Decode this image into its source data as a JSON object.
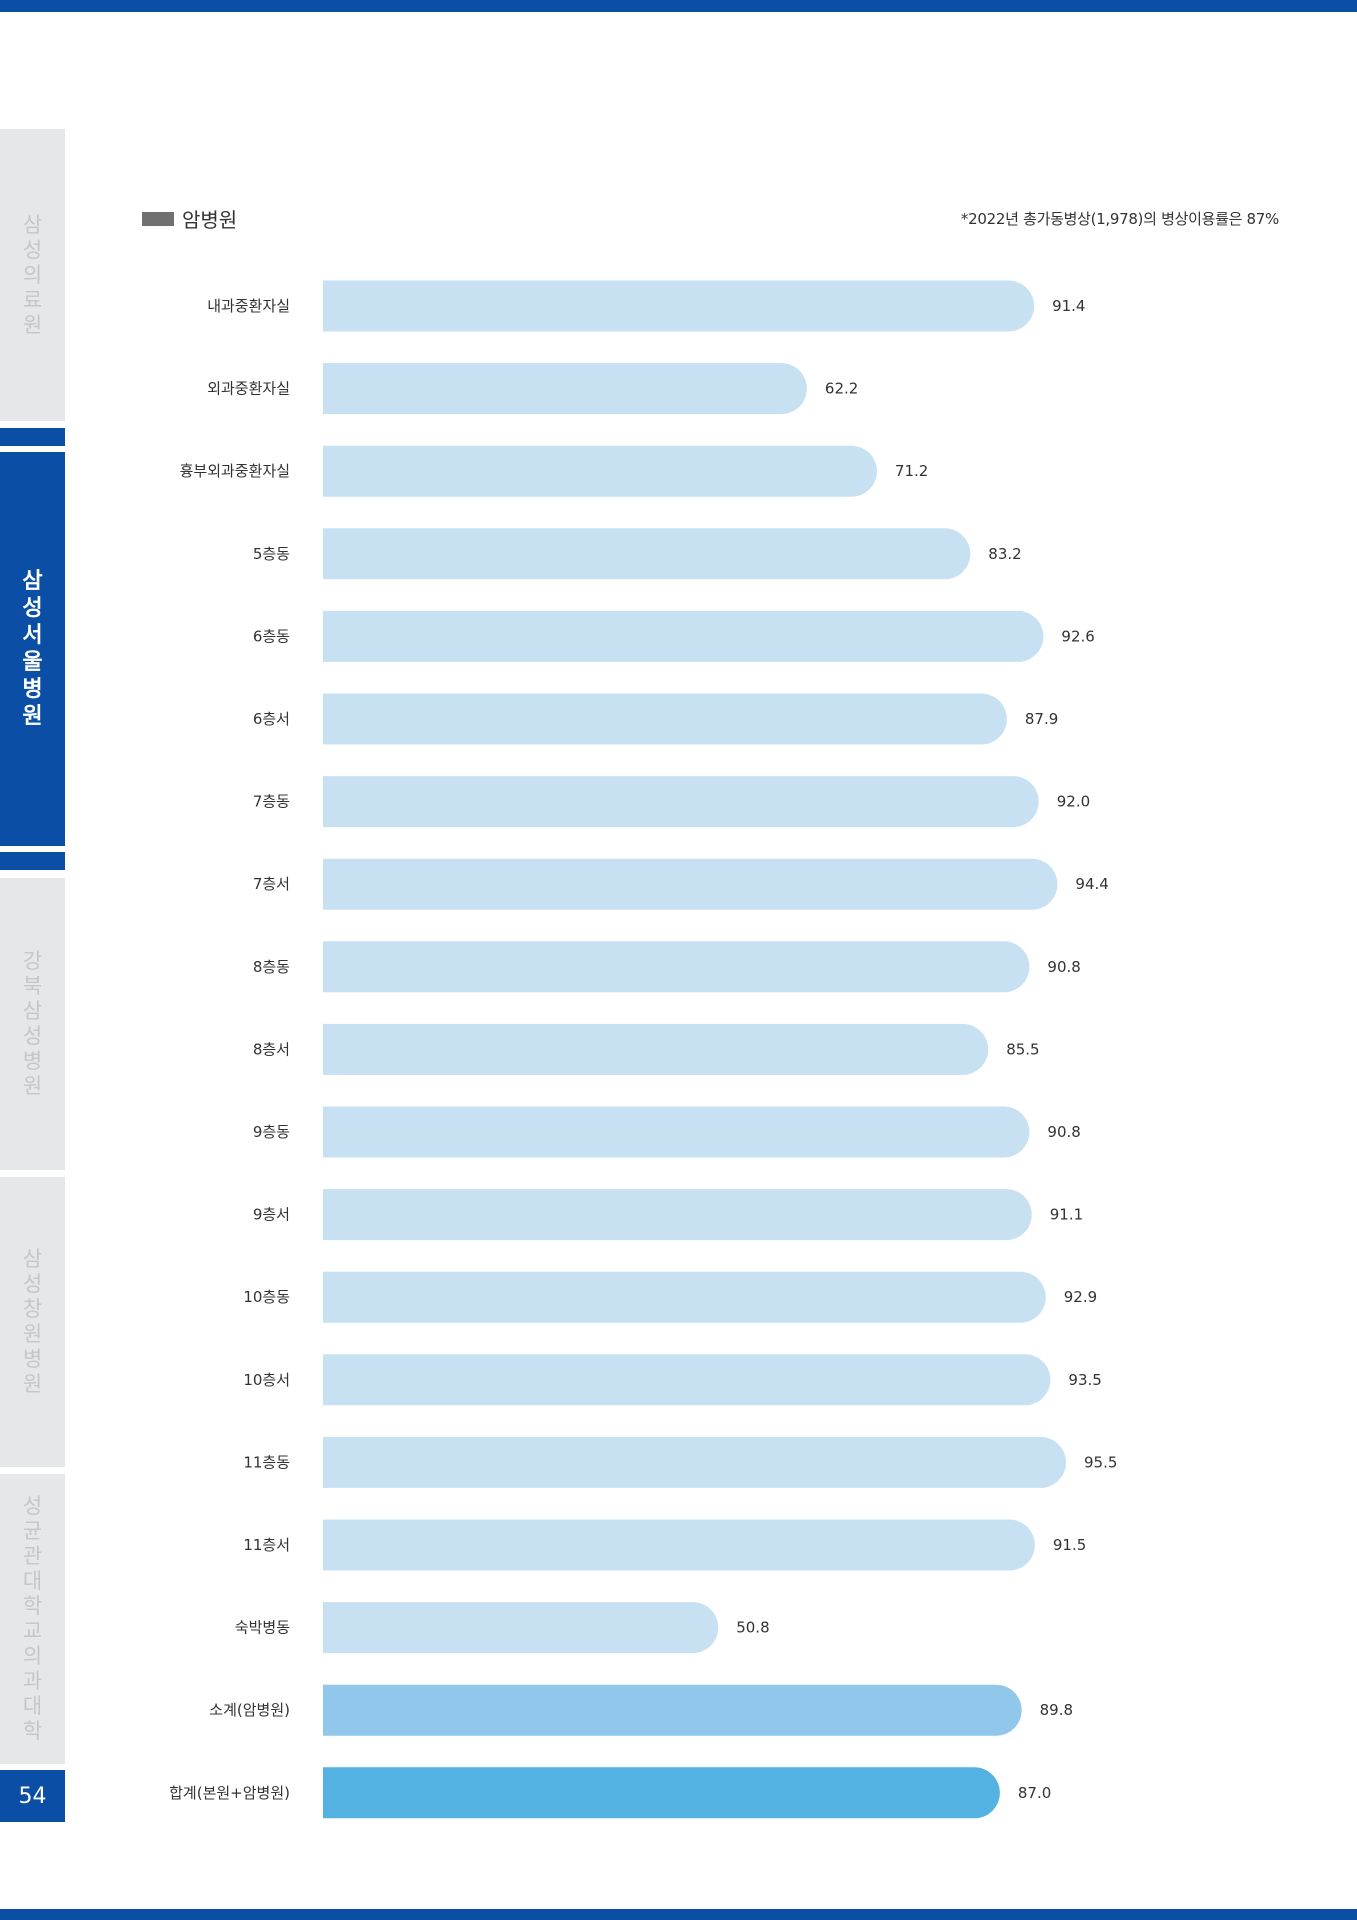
{
  "side_tabs": [
    {
      "chars": [
        "삼",
        "성",
        "의",
        "료",
        "원"
      ]
    },
    {
      "chars": [
        "삼",
        "성",
        "서",
        "울",
        "병",
        "원"
      ]
    },
    {
      "chars": [
        "강",
        "북",
        "삼",
        "성",
        "병",
        "원"
      ]
    },
    {
      "chars": [
        "삼",
        "성",
        "창",
        "원",
        "병",
        "원"
      ]
    },
    {
      "chars": [
        "성",
        "균",
        "관",
        "대",
        "학",
        "교",
        "의",
        "과",
        "대",
        "학"
      ]
    }
  ],
  "page_number": "54",
  "legend_label": "암병원",
  "footnote": "*2022년 총가동병상(1,978)의 병상이용률은 87%",
  "colors": {
    "brand": "#0a4ea6",
    "bar": "#c7e1f3",
    "bar_subtotal": "#91c7ea",
    "bar_total": "#54b2e3",
    "legend": "#707070"
  },
  "chart_data": {
    "type": "bar",
    "orientation": "horizontal",
    "categories": [
      "내과중환자실",
      "외과중환자실",
      "흉부외과중환자실",
      "5층동",
      "6층동",
      "6층서",
      "7층동",
      "7층서",
      "8층동",
      "8층서",
      "9층동",
      "9층서",
      "10층동",
      "10층서",
      "11층동",
      "11층서",
      "숙박병동",
      "소계(암병원)",
      "합계(본원+암병원)"
    ],
    "values": [
      91.4,
      62.2,
      71.2,
      83.2,
      92.6,
      87.9,
      92.0,
      94.4,
      90.8,
      85.5,
      90.8,
      91.1,
      92.9,
      93.5,
      95.5,
      91.5,
      50.8,
      89.8,
      87.0
    ],
    "value_labels": [
      "91.4",
      "62.2",
      "71.2",
      "83.2",
      "92.6",
      "87.9",
      "92.0",
      "94.4",
      "90.8",
      "85.5",
      "90.8",
      "91.1",
      "92.9",
      "93.5",
      "95.5",
      "91.5",
      "50.8",
      "89.8",
      "87.0"
    ],
    "bar_types": [
      "unit",
      "unit",
      "unit",
      "unit",
      "unit",
      "unit",
      "unit",
      "unit",
      "unit",
      "unit",
      "unit",
      "unit",
      "unit",
      "unit",
      "unit",
      "unit",
      "unit",
      "subtotal",
      "total"
    ],
    "xlim": [
      0,
      100
    ],
    "grid": false
  }
}
